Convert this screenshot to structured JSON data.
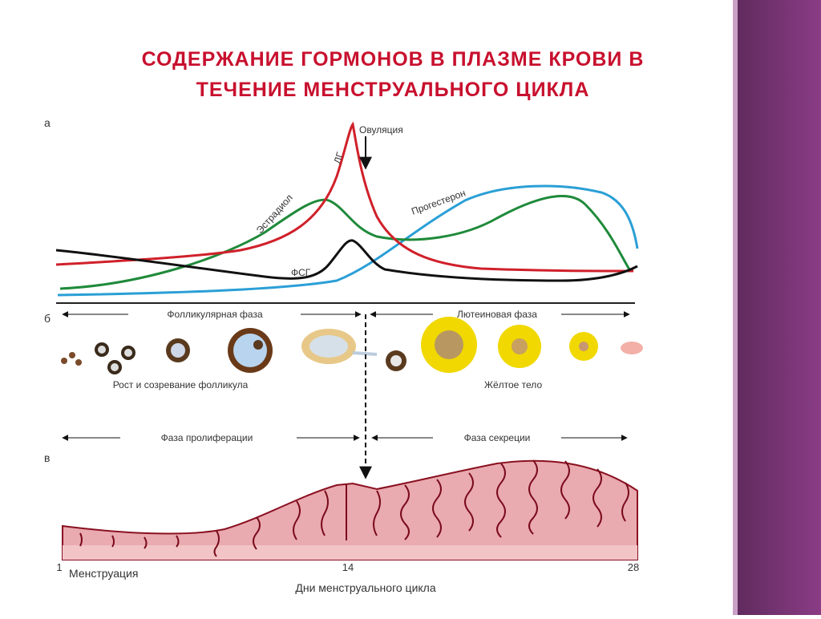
{
  "title": [
    "СОДЕРЖАНИЕ ГОРМОНОВ В ПЛАЗМЕ КРОВИ В",
    "ТЕЧЕНИЕ МЕНСТРУАЛЬНОГО ЦИКЛА"
  ],
  "panel_a": {
    "letter": "а",
    "ovulation": "Овуляция",
    "curves": {
      "lh": "ЛГ",
      "estradiol": "Эстрадиол",
      "progesterone": "Прогестерон",
      "fsh": "ФСГ"
    }
  },
  "panel_b": {
    "letter": "б",
    "phases": [
      "Фолликулярная фаза",
      "Лютеиновая фаза"
    ],
    "captions": [
      "Рост и созревание фолликула",
      "Жёлтое тело"
    ]
  },
  "panel_c": {
    "letter": "в",
    "phases": [
      "Фаза пролиферации",
      "Фаза секреции"
    ],
    "day_labels": [
      1,
      14,
      28
    ],
    "menstruation": "Менструация",
    "axis_title": "Дни менструального цикла"
  }
}
